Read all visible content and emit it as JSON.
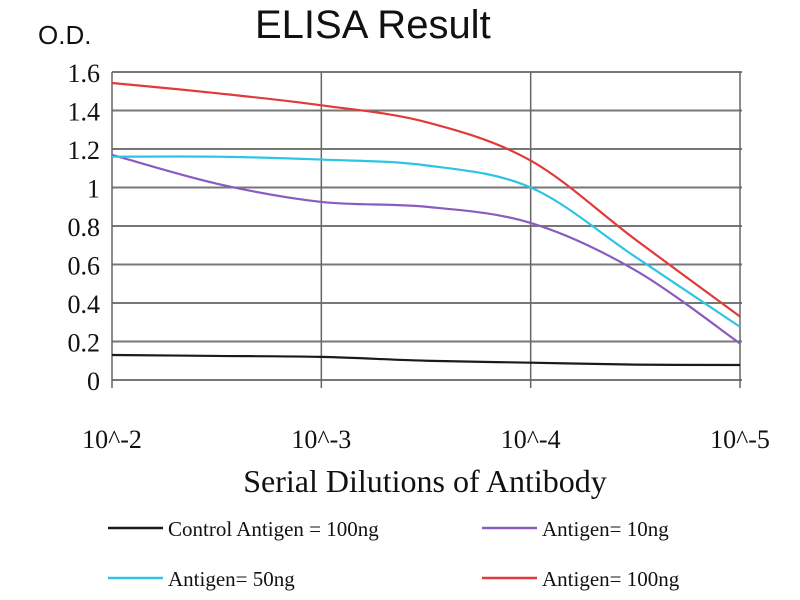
{
  "chart_data": {
    "type": "line",
    "title": "ELISA Result",
    "ylabel": "O.D.",
    "xlabel": "Serial Dilutions of Antibody",
    "x_ticks": [
      "10^-2",
      "10^-3",
      "10^-4",
      "10^-5"
    ],
    "x": [
      2,
      2.5,
      3,
      3.5,
      4,
      4.5,
      5
    ],
    "y_ticks": [
      "0",
      "0.2",
      "0.4",
      "0.6",
      "0.8",
      "1",
      "1.2",
      "1.4",
      "1.6"
    ],
    "ylim": [
      0,
      1.6
    ],
    "grid": true,
    "legend_position": "bottom",
    "series": [
      {
        "name": "Control Antigen = 100ng",
        "color": "#1a1a1a",
        "values": [
          0.13,
          0.125,
          0.12,
          0.1,
          0.09,
          0.08,
          0.078
        ]
      },
      {
        "name": "Antigen= 10ng",
        "color": "#8a5cc0",
        "values": [
          1.17,
          1.02,
          0.925,
          0.9,
          0.816,
          0.57,
          0.19
        ]
      },
      {
        "name": "Antigen= 50ng",
        "color": "#2ec4e6",
        "values": [
          1.16,
          1.16,
          1.145,
          1.115,
          1.0,
          0.64,
          0.276
        ]
      },
      {
        "name": "Antigen= 100ng",
        "color": "#e03a3a",
        "values": [
          1.543,
          1.49,
          1.427,
          1.34,
          1.14,
          0.73,
          0.33
        ]
      }
    ]
  }
}
